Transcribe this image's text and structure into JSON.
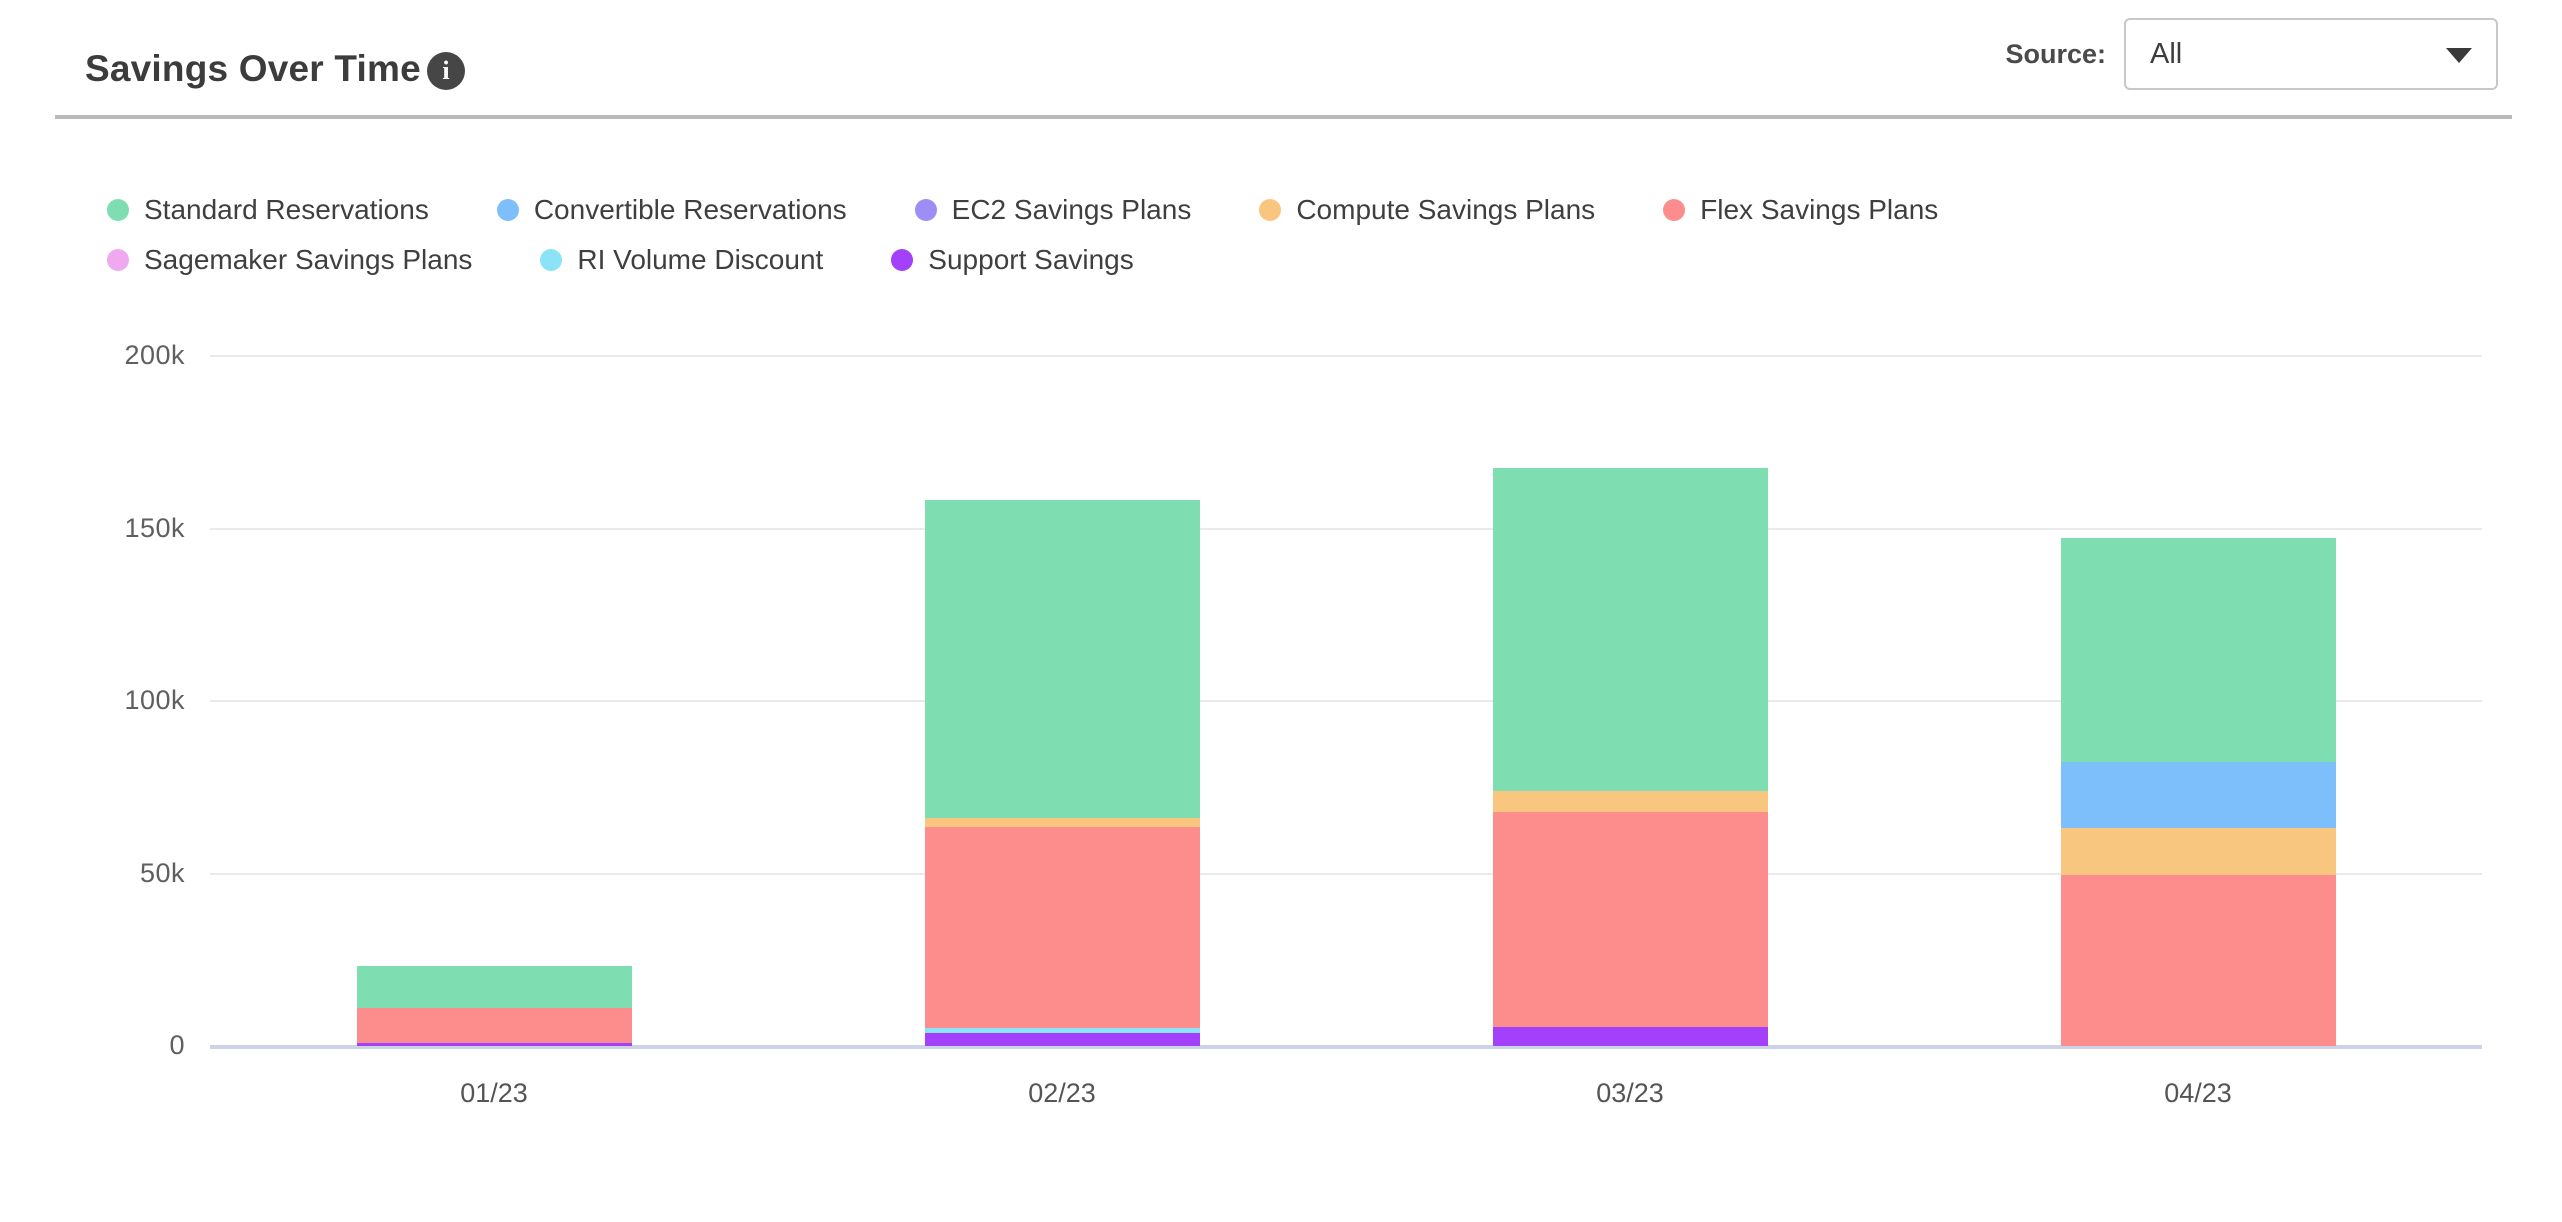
{
  "header": {
    "title": "Savings Over Time",
    "info_icon_glyph": "i",
    "source_label": "Source:",
    "source_value": "All"
  },
  "chart_data": {
    "type": "bar",
    "variant": "stacked",
    "title": "Savings Over Time",
    "categories": [
      "01/23",
      "02/23",
      "03/23",
      "04/23"
    ],
    "series": [
      {
        "name": "Standard Reservations",
        "color": "#7EDEB1",
        "values": [
          12200,
          92100,
          93500,
          64800
        ]
      },
      {
        "name": "Convertible Reservations",
        "color": "#7CBFFB",
        "values": [
          0,
          0,
          0,
          19100
        ]
      },
      {
        "name": "EC2 Savings Plans",
        "color": "#9C8EF4",
        "values": [
          0,
          0,
          0,
          0
        ]
      },
      {
        "name": "Compute Savings Plans",
        "color": "#F9C67F",
        "values": [
          0,
          2700,
          6200,
          13700
        ]
      },
      {
        "name": "Flex Savings Plans",
        "color": "#FD8D8D",
        "values": [
          10100,
          58200,
          62300,
          49600
        ]
      },
      {
        "name": "Sagemaker Savings Plans",
        "color": "#F0A9F0",
        "values": [
          0,
          0,
          0,
          0
        ]
      },
      {
        "name": "RI Volume Discount",
        "color": "#8AE3F6",
        "values": [
          0,
          1400,
          0,
          0
        ]
      },
      {
        "name": "Support Savings",
        "color": "#A340FA",
        "values": [
          1000,
          3900,
          5400,
          0
        ]
      }
    ],
    "stack_order": "bottom-to-top is reverse of series list (Support Savings at bottom, Standard Reservations on top)",
    "totals": [
      23300,
      158300,
      167400,
      147200
    ],
    "y_ticks": [
      {
        "label": "0",
        "value": 0
      },
      {
        "label": "50k",
        "value": 50000
      },
      {
        "label": "100k",
        "value": 100000
      },
      {
        "label": "150k",
        "value": 150000
      },
      {
        "label": "200k",
        "value": 200000
      }
    ],
    "ylim": [
      0,
      200000
    ],
    "xlabel": "",
    "ylabel": "",
    "grid": true,
    "legend_position": "top-left, two rows (5 items + 3 items)"
  },
  "colors": {
    "axis_line": "#CBD3E9",
    "gridline": "#EAEAEA",
    "tick_text": "#5F5F5F",
    "legend_text": "#3F3F3F",
    "title_text": "#3C3C3C",
    "divider": "#B9B9B9",
    "info_badge_bg": "#464646"
  }
}
